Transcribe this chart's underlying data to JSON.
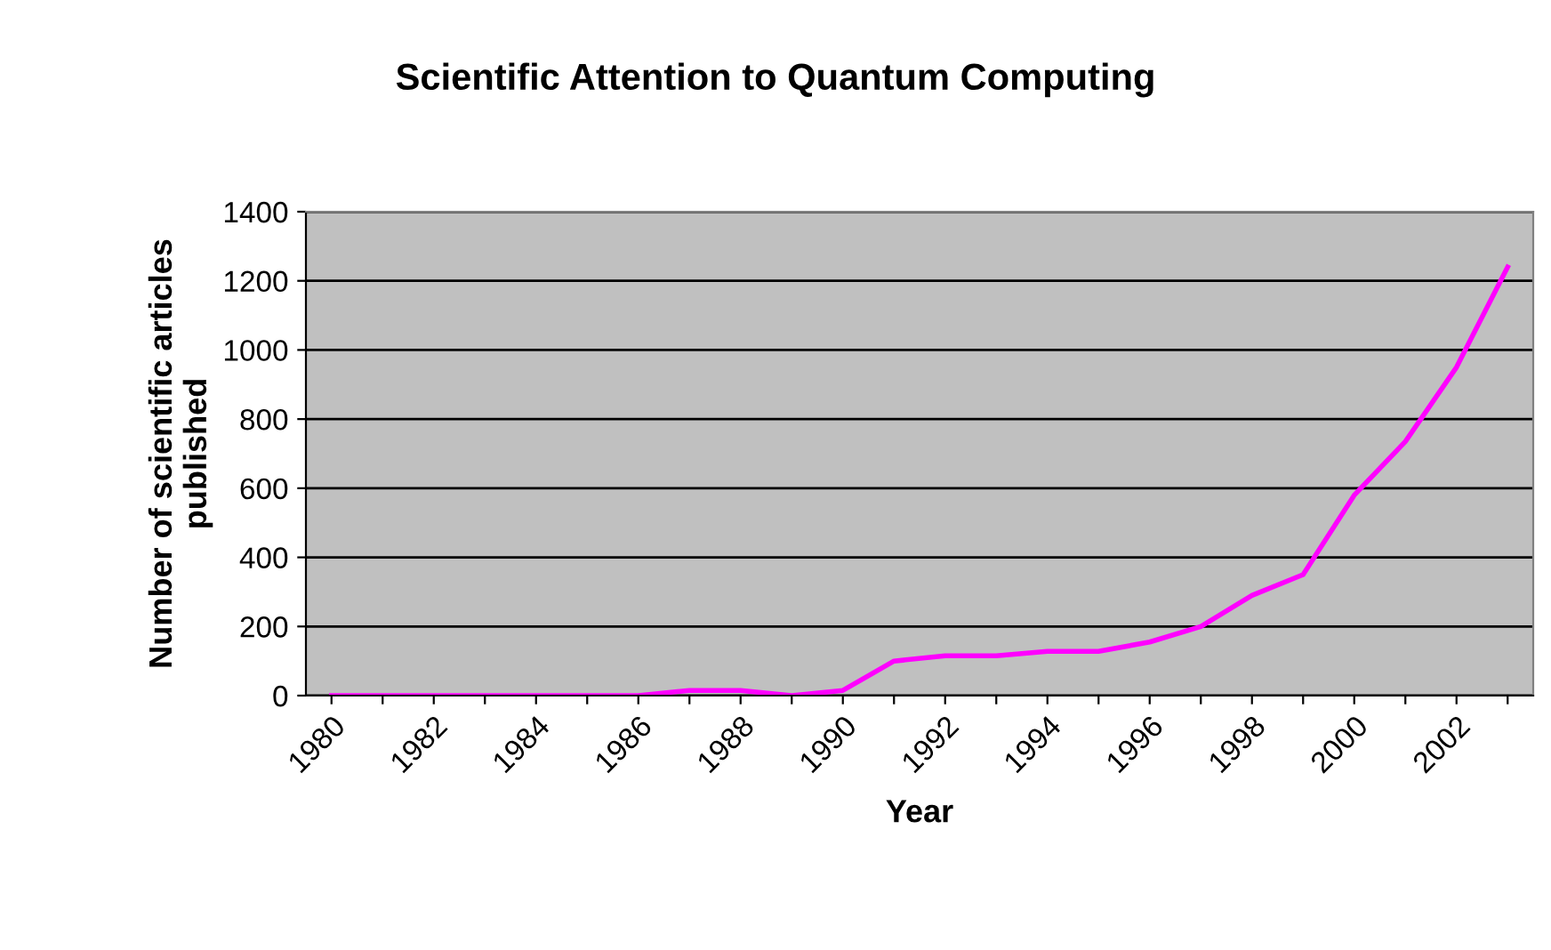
{
  "chart_data": {
    "type": "line",
    "title": "Scientific Attention to Quantum Computing",
    "xlabel": "Year",
    "ylabel": "Number of scientific articles\npublished",
    "categories": [
      "1980",
      null,
      "1982",
      null,
      "1984",
      null,
      "1986",
      null,
      "1988",
      null,
      "1990",
      null,
      "1992",
      null,
      "1994",
      null,
      "1996",
      null,
      "1998",
      null,
      "2000",
      null,
      "2002",
      null
    ],
    "series": [
      {
        "color": "#ff00ff",
        "values": [
          0,
          0,
          0,
          0,
          0,
          0,
          0,
          15,
          15,
          0,
          15,
          100,
          115,
          115,
          128,
          128,
          155,
          200,
          290,
          350,
          580,
          735,
          950,
          1240
        ]
      }
    ],
    "ylim": [
      0,
      1400
    ],
    "yticks": [
      0,
      200,
      400,
      600,
      800,
      1000,
      1200,
      1400
    ],
    "grid": "y",
    "legend": false
  }
}
